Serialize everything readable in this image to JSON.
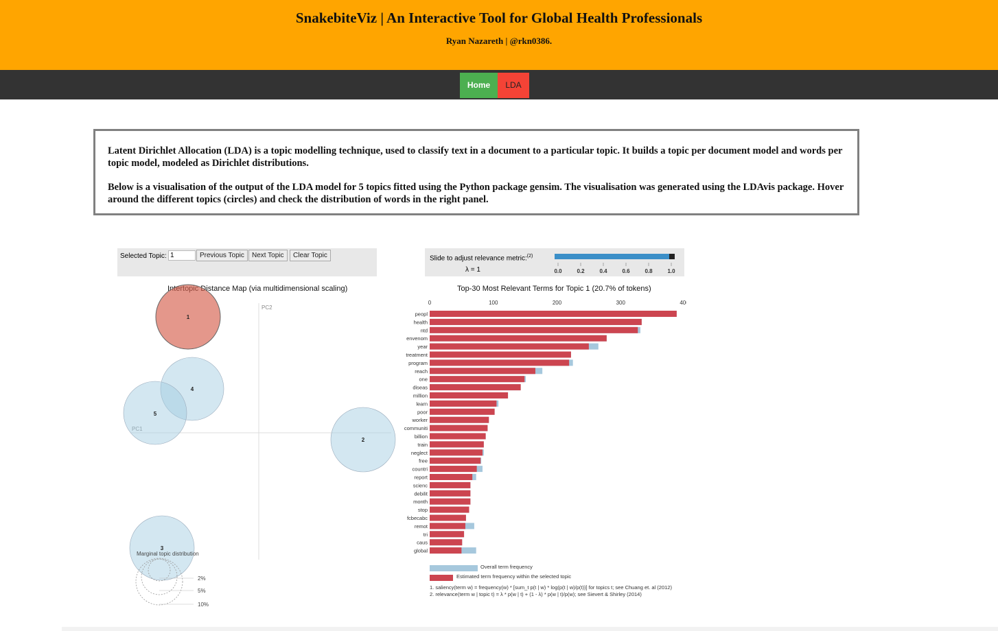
{
  "header": {
    "title": "SnakebiteViz | An Interactive Tool for Global Health Professionals",
    "subtitle": "Ryan Nazareth | @rkn0386.",
    "background_color": "#FFA500"
  },
  "nav": {
    "home_label": "Home",
    "lda_label": "LDA",
    "home_color": "#4CAF50",
    "lda_color": "#f44336"
  },
  "intro": {
    "paragraph1": "Latent Dirichlet Allocation (LDA) is a topic modelling technique, used to classify text in a document to a particular topic. It builds a topic per document model and words per topic model, modeled as Dirichlet distributions.",
    "paragraph2": "Below is a visualisation of the output of the LDA model for 5 topics fitted using the Python package gensim. The visualisation was generated using the LDAvis package. Hover around the different topics (circles) and check the distribution of words in the right panel."
  },
  "controls": {
    "selected_topic_label": "Selected Topic:",
    "selected_topic_value": "1",
    "previous_label": "Previous Topic",
    "next_label": "Next Topic",
    "clear_label": "Clear Topic",
    "slider_label": "Slide to adjust relevance metric:",
    "slider_footnote": "(2)",
    "lambda_text": "λ = 1",
    "slider_value": 1.0,
    "slider_ticks": [
      "0.0",
      "0.2",
      "0.4",
      "0.6",
      "0.8",
      "1.0"
    ]
  },
  "distance_map": {
    "title": "Intertopic Distance Map (via multidimensional scaling)",
    "pc1_label": "PC1",
    "pc2_label": "PC2",
    "marginal_label": "Marginal topic distribution",
    "legend_values": [
      "2%",
      "5%",
      "10%"
    ],
    "selected_color": "#d6604d",
    "default_color": "#9ecae1",
    "topics": [
      {
        "label": "1",
        "selected": true
      },
      {
        "label": "2",
        "selected": false
      },
      {
        "label": "3",
        "selected": false
      },
      {
        "label": "4",
        "selected": false
      },
      {
        "label": "5",
        "selected": false
      }
    ]
  },
  "bar_chart_title": "Top-30 Most Relevant Terms for Topic 1 (20.7% of tokens)",
  "chart_data": {
    "type": "bar",
    "orientation": "horizontal",
    "title": "Top-30 Most Relevant Terms for Topic 1 (20.7% of tokens)",
    "xlim": [
      0,
      400
    ],
    "x_ticks": [
      "0",
      "100",
      "200",
      "300",
      "400"
    ],
    "categories": [
      "peopl",
      "health",
      "ntd",
      "envenom",
      "year",
      "treatment",
      "program",
      "reach",
      "one",
      "diseas",
      "million",
      "learn",
      "poor",
      "worker",
      "communiti",
      "billion",
      "train",
      "neglect",
      "free",
      "countri",
      "report",
      "scienc",
      "debilit",
      "month",
      "stop",
      "fcbecabc",
      "remot",
      "tri",
      "caus",
      "global"
    ],
    "series": [
      {
        "name": "Overall term frequency",
        "color": "#a6c8dd",
        "values": [
          388,
          333,
          331,
          278,
          265,
          222,
          225,
          177,
          151,
          143,
          123,
          108,
          102,
          93,
          91,
          88,
          85,
          85,
          81,
          83,
          73,
          64,
          64,
          64,
          62,
          57,
          70,
          54,
          51,
          73
        ]
      },
      {
        "name": "Estimated term frequency within the selected topic",
        "color": "#cc4550",
        "values": [
          388,
          333,
          327,
          278,
          250,
          222,
          219,
          166,
          149,
          143,
          123,
          105,
          102,
          93,
          91,
          88,
          85,
          83,
          80,
          74,
          67,
          64,
          64,
          64,
          62,
          57,
          56,
          54,
          51,
          50
        ]
      }
    ],
    "footnotes": [
      "1. saliency(term w) = frequency(w) * [sum_t p(t | w) * log(p(t | w)/p(t))] for topics t; see Chuang et. al (2012)",
      "2. relevance(term w | topic t) = λ * p(w | t) + (1 - λ) * p(w | t)/p(w); see Sievert & Shirley (2014)"
    ]
  }
}
